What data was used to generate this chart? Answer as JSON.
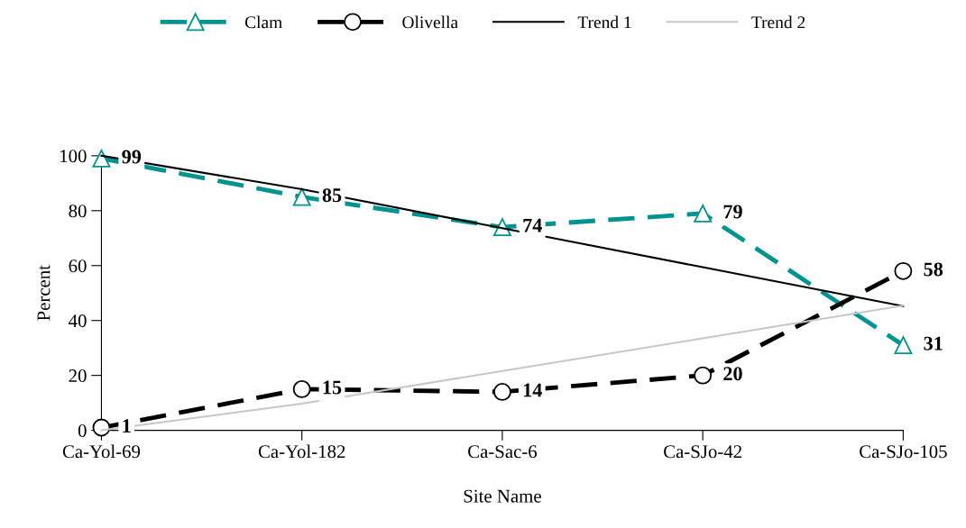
{
  "chart_data": {
    "type": "line",
    "xlabel": "Site Name",
    "ylabel": "Percent",
    "categories": [
      "Ca-Yol-69",
      "Ca-Yol-182",
      "Ca-Sac-6",
      "Ca-SJo-42",
      "Ca-SJo-105"
    ],
    "ylim": [
      0,
      100
    ],
    "yticks": [
      0,
      20,
      40,
      60,
      80,
      100
    ],
    "grid": false,
    "legend": "top",
    "series": [
      {
        "name": "Clam",
        "color": "#009490",
        "values": [
          99,
          85,
          74,
          79,
          31
        ],
        "marker": "triangle",
        "line_style": "dashed",
        "value_labels": [
          "99",
          "85",
          "74",
          "79",
          "31"
        ]
      },
      {
        "name": "Olivella",
        "color": "#000000",
        "values": [
          1,
          15,
          14,
          20,
          58
        ],
        "marker": "circle",
        "line_style": "dashed",
        "value_labels": [
          "1",
          "15",
          "14",
          "20",
          "58"
        ]
      },
      {
        "name": "Trend 1",
        "color": "#000000",
        "values": [
          100,
          87.8,
          73.6,
          59.4,
          45.2
        ],
        "marker": "none",
        "line_style": "solid"
      },
      {
        "name": "Trend 2",
        "color": "#c8c8c8",
        "values": [
          0,
          9.7,
          21.6,
          33.5,
          45.4
        ],
        "marker": "none",
        "line_style": "solid"
      }
    ]
  }
}
